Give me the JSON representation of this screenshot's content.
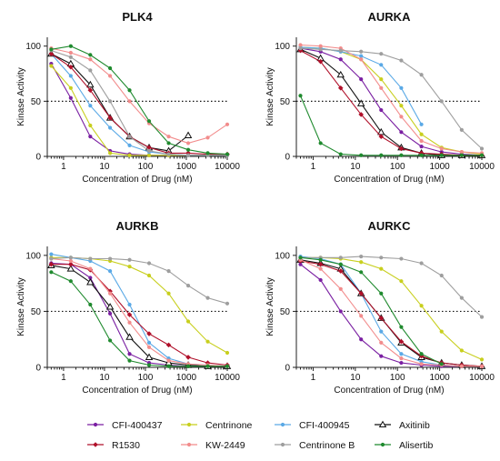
{
  "series_styles": [
    {
      "name": "CFI-400437",
      "color": "#7a1fa2",
      "marker": "circle"
    },
    {
      "name": "Centrinone",
      "color": "#c8cf1e",
      "marker": "circle"
    },
    {
      "name": "CFI-400945",
      "color": "#5aa9e6",
      "marker": "circle"
    },
    {
      "name": "Axitinib",
      "color": "#111111",
      "marker": "triangle-open"
    },
    {
      "name": "R1530",
      "color": "#b0102a",
      "marker": "diamond"
    },
    {
      "name": "KW-2449",
      "color": "#f28c8c",
      "marker": "circle"
    },
    {
      "name": "Centrinone B",
      "color": "#9e9e9e",
      "marker": "circle"
    },
    {
      "name": "Alisertib",
      "color": "#1f8a2e",
      "marker": "circle"
    }
  ],
  "chart_data": [
    {
      "type": "line",
      "title": "PLK4",
      "xlabel": "Concentration of Drug (nM)",
      "ylabel": "Kinase  Activity",
      "xscale": "log",
      "xlim": [
        0.4,
        10000
      ],
      "ylim": [
        0,
        108
      ],
      "x_ticks": [
        "1",
        "10",
        "100",
        "1000",
        "10000"
      ],
      "y_ticks": [
        "0",
        "50",
        "100"
      ],
      "reference_line": 50,
      "series": [
        {
          "name": "CFI-400437",
          "x": [
            0.5,
            1.5,
            4.5,
            13.7,
            41,
            123,
            370,
            1111,
            3333,
            10000
          ],
          "y": [
            84,
            53,
            18,
            5,
            2,
            1,
            1,
            1,
            1,
            1
          ]
        },
        {
          "name": "Centrinone",
          "x": [
            0.5,
            1.5,
            4.5,
            13.7,
            41,
            123,
            370,
            1111,
            3333,
            10000
          ],
          "y": [
            82,
            62,
            28,
            3,
            1,
            1,
            1,
            1,
            1,
            1
          ]
        },
        {
          "name": "CFI-400945",
          "x": [
            0.5,
            1.5,
            4.5,
            13.7,
            41,
            123,
            370,
            1111,
            3333,
            10000
          ],
          "y": [
            93,
            73,
            46,
            26,
            10,
            4,
            2,
            1,
            1,
            1
          ]
        },
        {
          "name": "Axitinib",
          "x": [
            0.5,
            1.5,
            4.5,
            13.7,
            41,
            123,
            370,
            1111
          ],
          "y": [
            93,
            84,
            65,
            35,
            18,
            8,
            5,
            19
          ]
        },
        {
          "name": "R1530",
          "x": [
            0.5,
            1.5,
            4.5,
            13.7,
            41,
            123,
            370,
            1111,
            3333,
            10000
          ],
          "y": [
            93,
            81,
            60,
            35,
            18,
            8,
            3,
            3,
            2,
            2
          ]
        },
        {
          "name": "KW-2449",
          "x": [
            0.5,
            1.5,
            4.5,
            13.7,
            41,
            123,
            370,
            1111,
            3333,
            10000
          ],
          "y": [
            98,
            94,
            88,
            73,
            50,
            30,
            18,
            12,
            17,
            29
          ]
        },
        {
          "name": "Centrinone B",
          "x": [
            0.5,
            1.5,
            4.5,
            13.7,
            41,
            123,
            370,
            1111,
            3333,
            10000
          ],
          "y": [
            96,
            90,
            78,
            50,
            18,
            5,
            2,
            1,
            1,
            1
          ]
        },
        {
          "name": "Alisertib",
          "x": [
            0.5,
            1.5,
            4.5,
            13.7,
            41,
            123,
            370,
            1111,
            3333,
            10000
          ],
          "y": [
            97,
            100,
            92,
            80,
            60,
            32,
            12,
            6,
            3,
            2
          ]
        }
      ]
    },
    {
      "type": "line",
      "title": "AURKA",
      "xlabel": "Concentration of Drug (nM)",
      "ylabel": "Kinase  Activity",
      "xscale": "log",
      "xlim": [
        0.4,
        10000
      ],
      "ylim": [
        0,
        108
      ],
      "x_ticks": [
        "1",
        "10",
        "100",
        "1000",
        "10000"
      ],
      "y_ticks": [
        "0",
        "50",
        "100"
      ],
      "reference_line": 50,
      "series": [
        {
          "name": "CFI-400437",
          "x": [
            0.5,
            1.5,
            4.5,
            13.7,
            41,
            123,
            370,
            1111,
            3333,
            10000
          ],
          "y": [
            98,
            95,
            88,
            70,
            42,
            22,
            9,
            4,
            2,
            1
          ]
        },
        {
          "name": "Centrinone",
          "x": [
            0.5,
            1.5,
            4.5,
            13.7,
            41,
            123,
            370,
            1111,
            3333,
            10000
          ],
          "y": [
            99,
            98,
            95,
            88,
            70,
            46,
            20,
            8,
            4,
            2
          ]
        },
        {
          "name": "CFI-400945",
          "x": [
            0.5,
            1.5,
            4.5,
            13.7,
            41,
            123,
            370
          ],
          "y": [
            99,
            98,
            95,
            91,
            83,
            62,
            29
          ]
        },
        {
          "name": "Axitinib",
          "x": [
            0.5,
            1.5,
            4.5,
            13.7,
            41,
            123,
            370,
            1111,
            3333,
            10000
          ],
          "y": [
            97,
            89,
            74,
            48,
            22,
            8,
            3,
            1,
            1,
            1
          ]
        },
        {
          "name": "R1530",
          "x": [
            0.5,
            1.5,
            4.5,
            13.7,
            41,
            123,
            370,
            1111,
            3333,
            10000
          ],
          "y": [
            96,
            86,
            62,
            38,
            18,
            7,
            3,
            2,
            1,
            1
          ]
        },
        {
          "name": "KW-2449",
          "x": [
            0.5,
            1.5,
            4.5,
            13.7,
            41,
            123,
            370,
            1111,
            3333,
            10000
          ],
          "y": [
            101,
            100,
            98,
            88,
            62,
            36,
            14,
            7,
            4,
            3
          ]
        },
        {
          "name": "Centrinone B",
          "x": [
            0.5,
            1.5,
            4.5,
            13.7,
            41,
            123,
            370,
            1111,
            3333,
            10000
          ],
          "y": [
            98,
            97,
            96,
            95,
            93,
            87,
            74,
            50,
            24,
            7
          ]
        },
        {
          "name": "Alisertib",
          "x": [
            0.5,
            1.5,
            4.5,
            13.7,
            41,
            123,
            370,
            1111,
            3333,
            10000
          ],
          "y": [
            55,
            12,
            2,
            1,
            1,
            1,
            1,
            1,
            1,
            1
          ]
        }
      ]
    },
    {
      "type": "line",
      "title": "AURKB",
      "xlabel": "Concentration of Drug (nM)",
      "ylabel": "Kinase  Activity",
      "xscale": "log",
      "xlim": [
        0.4,
        10000
      ],
      "ylim": [
        0,
        108
      ],
      "x_ticks": [
        "1",
        "10",
        "100",
        "1000",
        "10000"
      ],
      "y_ticks": [
        "0",
        "50",
        "100"
      ],
      "reference_line": 50,
      "series": [
        {
          "name": "CFI-400437",
          "x": [
            0.5,
            1.5,
            4.5,
            13.7,
            41,
            123,
            370,
            1111,
            3333,
            10000
          ],
          "y": [
            93,
            92,
            80,
            48,
            12,
            4,
            2,
            1,
            1,
            1
          ]
        },
        {
          "name": "Centrinone",
          "x": [
            0.5,
            1.5,
            4.5,
            13.7,
            41,
            123,
            370,
            1111,
            3333,
            10000
          ],
          "y": [
            98,
            98,
            97,
            95,
            90,
            82,
            66,
            41,
            23,
            13
          ]
        },
        {
          "name": "CFI-400945",
          "x": [
            0.5,
            1.5,
            4.5,
            13.7,
            41,
            123,
            370,
            1111,
            3333,
            10000
          ],
          "y": [
            101,
            98,
            95,
            86,
            56,
            22,
            8,
            3,
            2,
            1
          ]
        },
        {
          "name": "Axitinib",
          "x": [
            0.5,
            1.5,
            4.5,
            13.7,
            41,
            123,
            370,
            1111,
            3333,
            10000
          ],
          "y": [
            91,
            88,
            76,
            54,
            27,
            9,
            4,
            2,
            1,
            1
          ]
        },
        {
          "name": "R1530",
          "x": [
            0.5,
            1.5,
            4.5,
            13.7,
            41,
            123,
            370,
            1111,
            3333,
            10000
          ],
          "y": [
            92,
            92,
            87,
            68,
            47,
            30,
            20,
            9,
            4,
            2
          ]
        },
        {
          "name": "KW-2449",
          "x": [
            0.5,
            1.5,
            4.5,
            13.7,
            41,
            123,
            370,
            1111,
            3333,
            10000
          ],
          "y": [
            97,
            95,
            88,
            66,
            40,
            18,
            6,
            3,
            2,
            1
          ]
        },
        {
          "name": "Centrinone B",
          "x": [
            0.5,
            1.5,
            4.5,
            13.7,
            41,
            123,
            370,
            1111,
            3333,
            10000
          ],
          "y": [
            97,
            98,
            97,
            97,
            96,
            93,
            86,
            73,
            62,
            57
          ]
        },
        {
          "name": "Alisertib",
          "x": [
            0.5,
            1.5,
            4.5,
            13.7,
            41,
            123,
            370,
            1111,
            3333,
            10000
          ],
          "y": [
            85,
            77,
            56,
            24,
            6,
            2,
            1,
            1,
            1,
            1
          ]
        }
      ]
    },
    {
      "type": "line",
      "title": "AURKC",
      "xlabel": "Concentration of Drug (nM)",
      "ylabel": "Kinase  Activity",
      "xscale": "log",
      "xlim": [
        0.4,
        10000
      ],
      "ylim": [
        0,
        108
      ],
      "x_ticks": [
        "1",
        "10",
        "100",
        "1000",
        "10000"
      ],
      "y_ticks": [
        "0",
        "50",
        "100"
      ],
      "reference_line": 50,
      "series": [
        {
          "name": "CFI-400437",
          "x": [
            0.5,
            1.5,
            4.5,
            13.7,
            41,
            123,
            370,
            1111,
            3333,
            10000
          ],
          "y": [
            92,
            78,
            50,
            25,
            10,
            4,
            2,
            1,
            1,
            1
          ]
        },
        {
          "name": "Centrinone",
          "x": [
            0.5,
            1.5,
            4.5,
            13.7,
            41,
            123,
            370,
            1111,
            3333,
            10000
          ],
          "y": [
            98,
            98,
            97,
            94,
            88,
            77,
            55,
            32,
            15,
            7
          ]
        },
        {
          "name": "CFI-400945",
          "x": [
            0.5,
            1.5,
            4.5,
            13.7,
            41,
            123,
            370,
            1111,
            3333,
            10000
          ],
          "y": [
            99,
            97,
            92,
            66,
            32,
            12,
            5,
            2,
            1,
            1
          ]
        },
        {
          "name": "Axitinib",
          "x": [
            0.5,
            1.5,
            4.5,
            13.7,
            41,
            123,
            370,
            1111,
            3333,
            10000
          ],
          "y": [
            96,
            93,
            88,
            66,
            44,
            22,
            9,
            4,
            2,
            1
          ]
        },
        {
          "name": "R1530",
          "x": [
            0.5,
            1.5,
            4.5,
            13.7,
            41,
            123,
            370,
            1111,
            3333,
            10000
          ],
          "y": [
            95,
            92,
            86,
            66,
            44,
            23,
            10,
            4,
            2,
            1
          ]
        },
        {
          "name": "KW-2449",
          "x": [
            0.5,
            1.5,
            4.5,
            13.7,
            41,
            123,
            370,
            1111,
            3333,
            10000
          ],
          "y": [
            96,
            88,
            70,
            46,
            22,
            8,
            3,
            2,
            1,
            1
          ]
        },
        {
          "name": "Centrinone B",
          "x": [
            0.5,
            1.5,
            4.5,
            13.7,
            41,
            123,
            370,
            1111,
            3333,
            10000
          ],
          "y": [
            98,
            98,
            98,
            99,
            98,
            97,
            93,
            82,
            62,
            45
          ]
        },
        {
          "name": "Alisertib",
          "x": [
            0.5,
            1.5,
            4.5,
            13.7,
            41,
            123,
            370,
            1111
          ],
          "y": [
            98,
            96,
            92,
            85,
            66,
            36,
            12,
            3
          ]
        }
      ]
    }
  ]
}
